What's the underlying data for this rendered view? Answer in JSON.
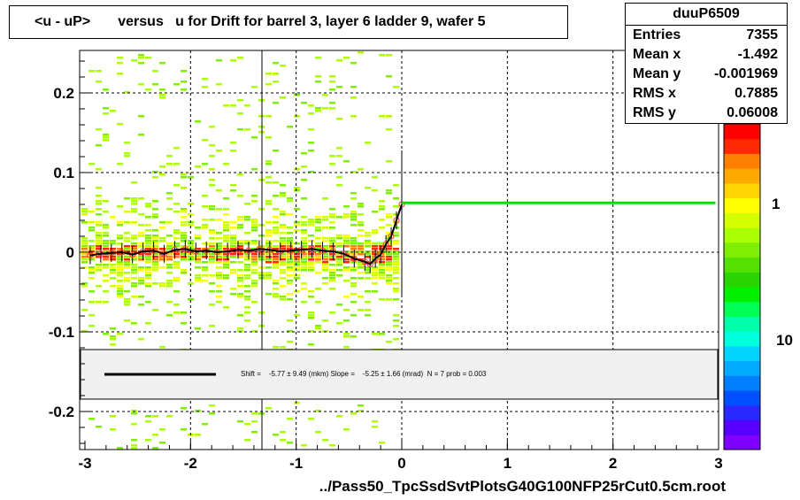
{
  "title": "<u - uP>       versus   u for Drift for barrel 3, layer 6 ladder 9, wafer 5",
  "stats": {
    "name": "duuP6509",
    "rows": [
      {
        "key": "Entries",
        "value": "7355"
      },
      {
        "key": "Mean x",
        "value": "-1.492"
      },
      {
        "key": "Mean y",
        "value": "-0.001969"
      },
      {
        "key": "RMS x",
        "value": "0.7885"
      },
      {
        "key": "RMS y",
        "value": "0.06008"
      }
    ]
  },
  "fit_text": "Shift =    -5.77 ± 9.49 (mkm) Slope =    -5.25 ± 1.66 (mrad)  N = 7 prob = 0.003",
  "xlabel": "../Pass50_TpcSsdSvtPlotsG40G100NFP25rCut0.5cm.root",
  "colors": {
    "profile_line": "#000000",
    "fit_line": "#00dd00",
    "points": "#ff4444",
    "background": "#ffffff",
    "palette": [
      "#7f00ff",
      "#5500ff",
      "#2a28ff",
      "#0050ff",
      "#0080ff",
      "#00aaff",
      "#00d4ff",
      "#00ffdd",
      "#00ffaa",
      "#00ff55",
      "#00f000",
      "#2ad400",
      "#55e000",
      "#80ee00",
      "#aaff00",
      "#d4ff00",
      "#ffff00",
      "#ffd400",
      "#ffaa00",
      "#ff7f00",
      "#ff2a00",
      "#ff0000"
    ]
  },
  "chart_data": {
    "type": "heatmap",
    "xlim": [
      -3,
      3
    ],
    "ylim": [
      -0.25,
      0.25
    ],
    "x_ticks": [
      -3,
      -2,
      -1,
      0,
      1,
      2,
      3
    ],
    "x_tick_labels": [
      "-3",
      "-2",
      "-1",
      "0",
      "1",
      "2",
      "3"
    ],
    "y_ticks": [
      -0.2,
      -0.1,
      0,
      0.1,
      0.2
    ],
    "y_tick_labels": [
      "-0.2",
      "-0.1",
      "0",
      "0.1",
      "0.2"
    ],
    "colorbar_labels": [
      "1",
      "10"
    ],
    "grid": true,
    "profile": {
      "x": [
        -2.95,
        -2.85,
        -2.75,
        -2.65,
        -2.55,
        -2.45,
        -2.35,
        -2.25,
        -2.15,
        -2.05,
        -1.95,
        -1.85,
        -1.75,
        -1.65,
        -1.55,
        -1.45,
        -1.35,
        -1.25,
        -1.15,
        -1.05,
        -0.95,
        -0.85,
        -0.75,
        -0.65,
        -0.55,
        -0.45,
        -0.35,
        -0.3,
        -0.25,
        -0.2,
        -0.15,
        -0.1,
        -0.05,
        0.0
      ],
      "y": [
        -0.004,
        -0.002,
        -0.001,
        0.0,
        -0.003,
        0.001,
        0.002,
        -0.002,
        0.003,
        0.004,
        0.001,
        0.002,
        0.0,
        0.001,
        0.003,
        0.002,
        0.004,
        0.003,
        0.001,
        0.002,
        0.003,
        0.004,
        0.002,
        0.001,
        -0.002,
        -0.008,
        -0.012,
        -0.015,
        -0.008,
        -0.003,
        0.01,
        0.02,
        0.04,
        0.06
      ]
    },
    "fit_line": {
      "x": [
        0.0,
        2.97
      ],
      "y": [
        0.062,
        0.062
      ]
    }
  }
}
